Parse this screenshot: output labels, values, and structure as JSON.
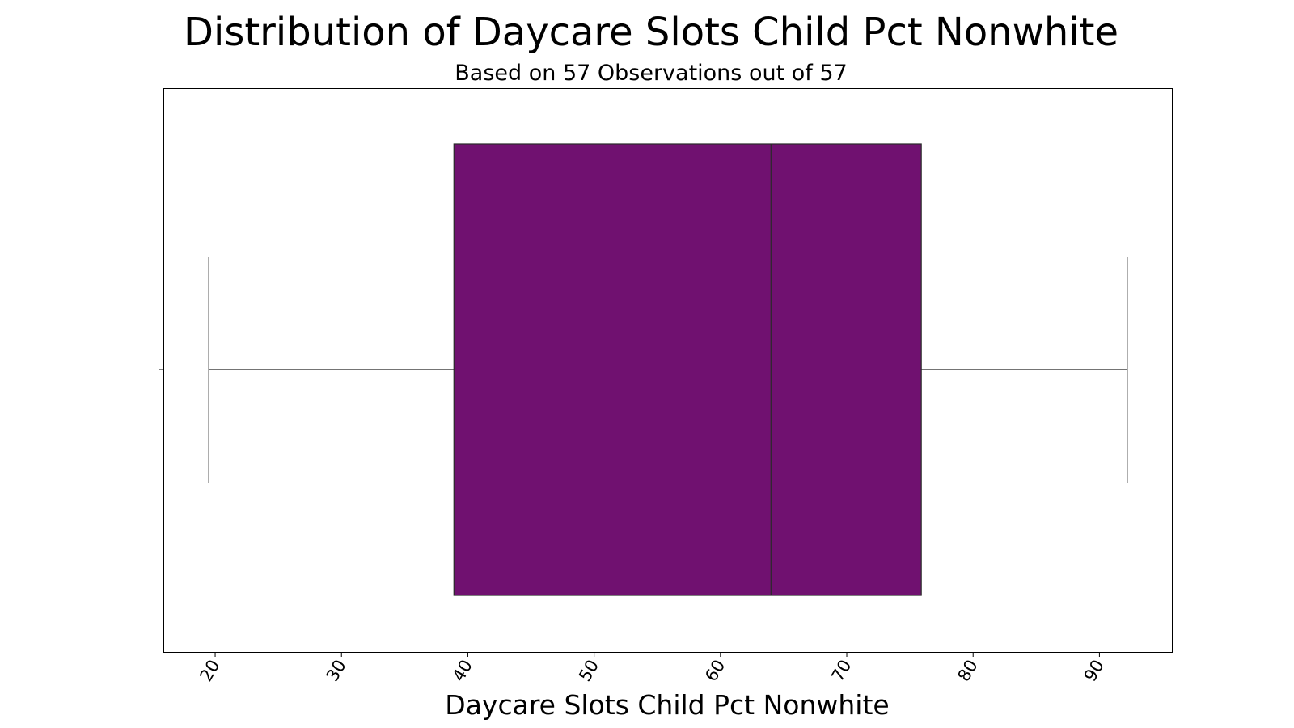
{
  "chart_data": {
    "type": "box",
    "title": "Distribution of Daycare Slots Child Pct Nonwhite",
    "subtitle": "Based on 57 Observations out of 57",
    "xlabel": "Daycare Slots Child Pct Nonwhite",
    "ylabel": "",
    "orientation": "horizontal",
    "xlim": [
      15.9,
      95.8
    ],
    "x_ticks": [
      20,
      30,
      40,
      50,
      60,
      70,
      80,
      90
    ],
    "x_tick_rotation_deg": 60,
    "grid": false,
    "box": {
      "whisker_low": 19.5,
      "q1": 38.9,
      "median": 64.0,
      "q3": 75.9,
      "whisker_high": 92.2,
      "fill": "#701170"
    }
  }
}
